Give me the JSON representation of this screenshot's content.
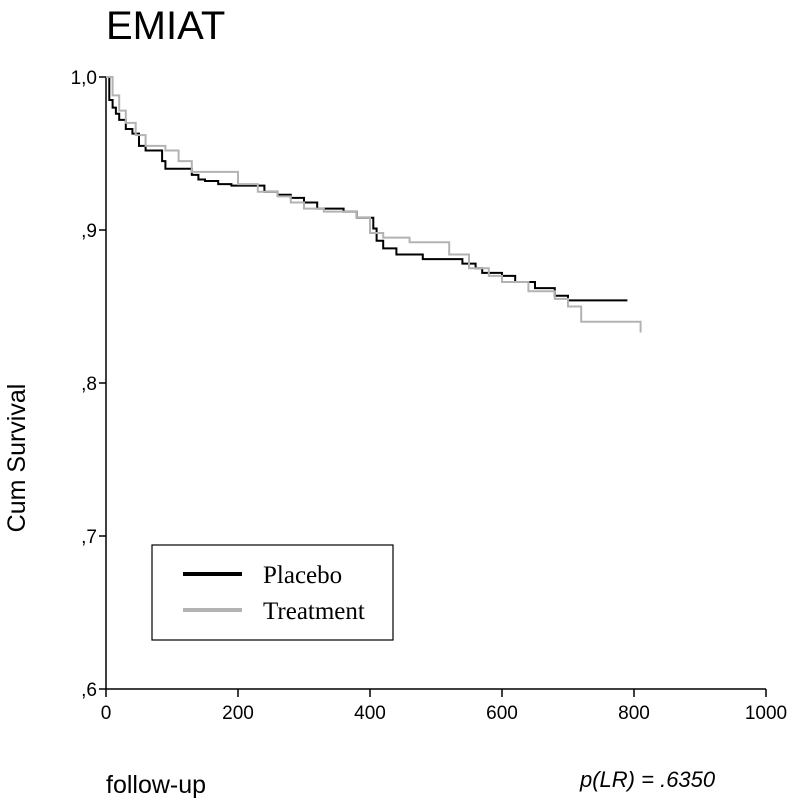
{
  "chart_data": {
    "type": "line",
    "title": "EMIAT",
    "xlabel": "follow-up",
    "ylabel": "Cum Survival",
    "annotation": "p(LR) = .6350",
    "xlim": [
      0,
      1000
    ],
    "ylim": [
      0.6,
      1.0
    ],
    "x_ticks": [
      0,
      200,
      400,
      600,
      800,
      1000
    ],
    "x_tick_labels": [
      "0",
      "200",
      "400",
      "600",
      "800",
      "1000"
    ],
    "y_ticks": [
      0.6,
      0.7,
      0.8,
      0.9,
      1.0
    ],
    "y_tick_labels": [
      ",6",
      ",7",
      ",8",
      ",9",
      "1,0"
    ],
    "grid": false,
    "legend_position": "bottom-left",
    "series": [
      {
        "name": "Placebo",
        "color": "#000000",
        "x": [
          0,
          5,
          10,
          15,
          20,
          30,
          40,
          50,
          60,
          85,
          90,
          130,
          140,
          150,
          170,
          190,
          210,
          240,
          260,
          280,
          300,
          320,
          360,
          380,
          405,
          410,
          420,
          440,
          480,
          520,
          540,
          560,
          570,
          600,
          620,
          650,
          680,
          700,
          770,
          790
        ],
        "y": [
          1.0,
          0.985,
          0.98,
          0.976,
          0.972,
          0.966,
          0.963,
          0.955,
          0.952,
          0.945,
          0.94,
          0.936,
          0.933,
          0.932,
          0.93,
          0.929,
          0.929,
          0.925,
          0.923,
          0.921,
          0.918,
          0.914,
          0.912,
          0.908,
          0.901,
          0.893,
          0.888,
          0.884,
          0.881,
          0.881,
          0.878,
          0.875,
          0.872,
          0.87,
          0.866,
          0.862,
          0.857,
          0.854,
          0.854,
          0.854
        ]
      },
      {
        "name": "Treatment",
        "color": "#b3b3b3",
        "x": [
          0,
          10,
          20,
          30,
          45,
          60,
          90,
          110,
          130,
          150,
          180,
          200,
          230,
          260,
          280,
          300,
          330,
          380,
          400,
          420,
          460,
          520,
          550,
          580,
          600,
          640,
          680,
          700,
          720,
          810
        ],
        "y": [
          1.0,
          0.988,
          0.978,
          0.97,
          0.962,
          0.955,
          0.952,
          0.945,
          0.938,
          0.938,
          0.938,
          0.93,
          0.925,
          0.922,
          0.918,
          0.914,
          0.912,
          0.908,
          0.898,
          0.895,
          0.892,
          0.884,
          0.875,
          0.87,
          0.866,
          0.86,
          0.855,
          0.85,
          0.84,
          0.833
        ]
      }
    ]
  }
}
